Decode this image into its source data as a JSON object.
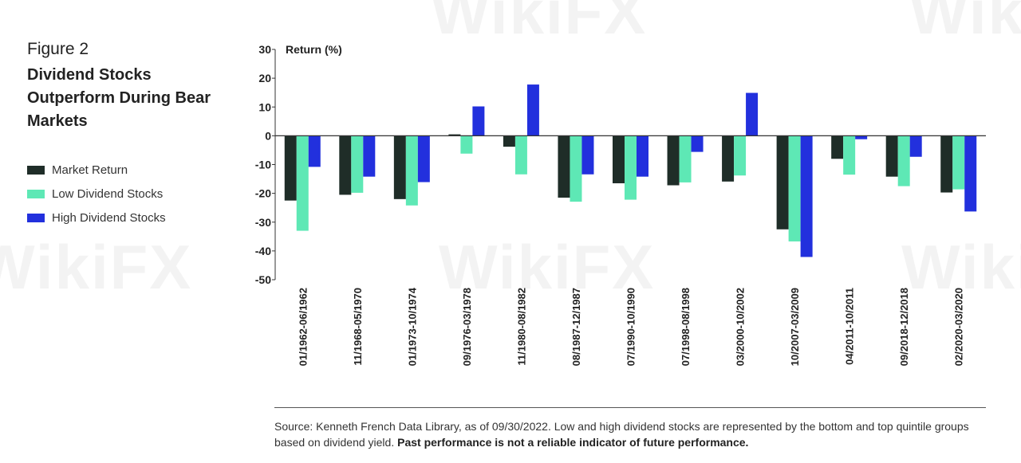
{
  "figure_label": "Figure 2",
  "title": "Dividend Stocks Outperform During Bear Markets",
  "watermark_text": "WikiFX",
  "legend": [
    {
      "label": "Market Return",
      "color": "#1f2d28"
    },
    {
      "label": "Low Dividend Stocks",
      "color": "#5ee8b5"
    },
    {
      "label": "High Dividend Stocks",
      "color": "#2230dd"
    }
  ],
  "source": {
    "text": "Source: Kenneth French Data Library, as of 09/30/2022. Low and high dividend stocks are represented by the bottom and top quintile groups based on dividend yield. ",
    "bold": "Past performance is not a reliable indicator of future performance."
  },
  "chart_data": {
    "type": "bar",
    "ylabel": "Return (%)",
    "ylim": [
      -50,
      30
    ],
    "yticks": [
      30,
      20,
      10,
      0,
      -10,
      -20,
      -30,
      -40,
      -50
    ],
    "grid": false,
    "legend_position": "left",
    "categories": [
      "01/1962-06/1962",
      "11/1968-05/1970",
      "01/1973-10/1974",
      "09/1976-03/1978",
      "11/1980-08/1982",
      "08/1987-12/1987",
      "07/1990-10/1990",
      "07/1998-08/1998",
      "03/2000-10/2002",
      "10/2007-03/2009",
      "04/2011-10/2011",
      "09/2018-12/2018",
      "02/2020-03/2020"
    ],
    "series": [
      {
        "name": "Market Return",
        "color": "#1f2d28",
        "values": [
          -22.5,
          -20.5,
          -22,
          0.5,
          -3.8,
          -21.5,
          -16.5,
          -17.2,
          -15.9,
          -32.5,
          -8,
          -14.2,
          -19.7
        ]
      },
      {
        "name": "Low Dividend Stocks",
        "color": "#5ee8b5",
        "values": [
          -33,
          -19.8,
          -24.2,
          -6.2,
          -13.4,
          -22.9,
          -22.2,
          -16.2,
          -13.8,
          -36.7,
          -13.5,
          -17.5,
          -18.6
        ]
      },
      {
        "name": "High Dividend Stocks",
        "color": "#2230dd",
        "values": [
          -10.8,
          -14.2,
          -16.1,
          10.2,
          17.8,
          -13.4,
          -14.2,
          -5.6,
          14.9,
          -42.1,
          -1.2,
          -7.3,
          -26.3
        ]
      }
    ]
  }
}
